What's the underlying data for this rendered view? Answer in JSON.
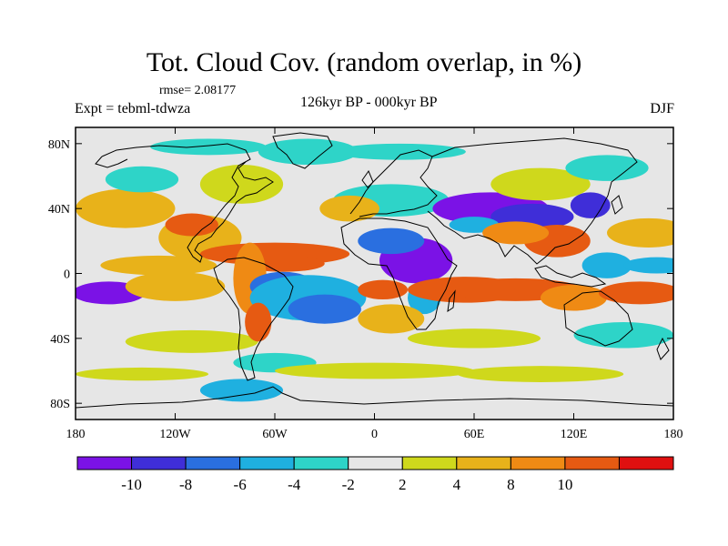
{
  "title": "Tot. Cloud Cov. (random overlap, in %)",
  "rmse": "rmse= 2.08177",
  "expt": "Expt = tebml-tdwza",
  "subtitle": "126kyr BP - 000kyr BP",
  "season": "DJF",
  "lat_ticks": [
    {
      "label": "80N",
      "lat": 80
    },
    {
      "label": "40N",
      "lat": 40
    },
    {
      "label": "0",
      "lat": 0
    },
    {
      "label": "40S",
      "lat": -40
    },
    {
      "label": "80S",
      "lat": -80
    }
  ],
  "lon_ticks": [
    {
      "label": "180",
      "lon": -180
    },
    {
      "label": "120W",
      "lon": -120
    },
    {
      "label": "60W",
      "lon": -60
    },
    {
      "label": "0",
      "lon": 0
    },
    {
      "label": "60E",
      "lon": 60
    },
    {
      "label": "120E",
      "lon": 120
    },
    {
      "label": "180",
      "lon": 180
    }
  ],
  "colorbar": {
    "colors": [
      "#7b12e6",
      "#3f2ed8",
      "#2a6fe0",
      "#1fb0e0",
      "#2ed4c8",
      "#e6e6e6",
      "#cfd81c",
      "#e8b21a",
      "#ef8a14",
      "#e65a12",
      "#e01010"
    ],
    "labels": [
      "-10",
      "-8",
      "-6",
      "-4",
      "-2",
      "2",
      "4",
      "8",
      "10"
    ]
  },
  "chart_data": {
    "type": "heatmap",
    "title": "Tot. Cloud Cov. (random overlap, in %)",
    "subtitle": "126kyr BP - 000kyr BP",
    "season": "DJF",
    "xlim": [
      -180,
      180
    ],
    "ylim": [
      -90,
      90
    ],
    "levels": [
      -10,
      -8,
      -6,
      -4,
      -2,
      2,
      4,
      8,
      10
    ],
    "colors": [
      "#7b12e6",
      "#3f2ed8",
      "#2a6fe0",
      "#1fb0e0",
      "#2ed4c8",
      "#e6e6e6",
      "#cfd81c",
      "#e8b21a",
      "#ef8a14",
      "#e65a12",
      "#e01010"
    ],
    "features": [
      {
        "lon": -160,
        "lat": -12,
        "rx": 22,
        "ry": 7,
        "v": -11
      },
      {
        "lon": -120,
        "lat": -8,
        "rx": 30,
        "ry": 9,
        "v": 5
      },
      {
        "lon": -130,
        "lat": 5,
        "rx": 35,
        "ry": 6,
        "v": 7
      },
      {
        "lon": -105,
        "lat": 22,
        "rx": 25,
        "ry": 14,
        "v": 5
      },
      {
        "lon": -110,
        "lat": 30,
        "rx": 16,
        "ry": 7,
        "v": 11
      },
      {
        "lon": -60,
        "lat": 12,
        "rx": 45,
        "ry": 7,
        "v": 11
      },
      {
        "lon": -55,
        "lat": 6,
        "rx": 25,
        "ry": 5,
        "v": 10
      },
      {
        "lon": -75,
        "lat": -3,
        "rx": 10,
        "ry": 22,
        "v": 8
      },
      {
        "lon": -55,
        "lat": -8,
        "rx": 20,
        "ry": 9,
        "v": -7
      },
      {
        "lon": -40,
        "lat": -15,
        "rx": 35,
        "ry": 14,
        "v": -5
      },
      {
        "lon": -30,
        "lat": -22,
        "rx": 22,
        "ry": 9,
        "v": -7
      },
      {
        "lon": -150,
        "lat": 40,
        "rx": 30,
        "ry": 12,
        "v": 5
      },
      {
        "lon": -140,
        "lat": 58,
        "rx": 22,
        "ry": 8,
        "v": -3
      },
      {
        "lon": -80,
        "lat": 55,
        "rx": 25,
        "ry": 12,
        "v": 3
      },
      {
        "lon": -40,
        "lat": 75,
        "rx": 30,
        "ry": 8,
        "v": -4
      },
      {
        "lon": -100,
        "lat": 78,
        "rx": 35,
        "ry": 5,
        "v": -3
      },
      {
        "lon": 15,
        "lat": 75,
        "rx": 40,
        "ry": 5,
        "v": -3
      },
      {
        "lon": 10,
        "lat": 45,
        "rx": 35,
        "ry": 10,
        "v": -3
      },
      {
        "lon": -15,
        "lat": 40,
        "rx": 18,
        "ry": 8,
        "v": 5
      },
      {
        "lon": 25,
        "lat": 8,
        "rx": 22,
        "ry": 14,
        "v": -11
      },
      {
        "lon": 10,
        "lat": 20,
        "rx": 20,
        "ry": 8,
        "v": -7
      },
      {
        "lon": 30,
        "lat": -15,
        "rx": 10,
        "ry": 10,
        "v": -6
      },
      {
        "lon": 5,
        "lat": -10,
        "rx": 15,
        "ry": 6,
        "v": 10
      },
      {
        "lon": 10,
        "lat": -28,
        "rx": 20,
        "ry": 9,
        "v": 7
      },
      {
        "lon": 55,
        "lat": -10,
        "rx": 35,
        "ry": 8,
        "v": 11
      },
      {
        "lon": 85,
        "lat": -10,
        "rx": 40,
        "ry": 7,
        "v": 11
      },
      {
        "lon": 120,
        "lat": -15,
        "rx": 20,
        "ry": 8,
        "v": 9
      },
      {
        "lon": 160,
        "lat": -12,
        "rx": 25,
        "ry": 7,
        "v": 10
      },
      {
        "lon": 70,
        "lat": 40,
        "rx": 35,
        "ry": 10,
        "v": -11
      },
      {
        "lon": 95,
        "lat": 35,
        "rx": 25,
        "ry": 8,
        "v": -9
      },
      {
        "lon": 60,
        "lat": 30,
        "rx": 15,
        "ry": 5,
        "v": -6
      },
      {
        "lon": 110,
        "lat": 20,
        "rx": 20,
        "ry": 10,
        "v": 10
      },
      {
        "lon": 85,
        "lat": 25,
        "rx": 20,
        "ry": 7,
        "v": 9
      },
      {
        "lon": 130,
        "lat": 42,
        "rx": 12,
        "ry": 8,
        "v": -10
      },
      {
        "lon": 165,
        "lat": 25,
        "rx": 25,
        "ry": 9,
        "v": 6
      },
      {
        "lon": 140,
        "lat": 5,
        "rx": 15,
        "ry": 8,
        "v": -5
      },
      {
        "lon": 170,
        "lat": 5,
        "rx": 20,
        "ry": 5,
        "v": -6
      },
      {
        "lon": 100,
        "lat": 55,
        "rx": 30,
        "ry": 10,
        "v": 3
      },
      {
        "lon": 140,
        "lat": 65,
        "rx": 25,
        "ry": 8,
        "v": -4
      },
      {
        "lon": 150,
        "lat": -38,
        "rx": 30,
        "ry": 8,
        "v": -4
      },
      {
        "lon": 60,
        "lat": -40,
        "rx": 40,
        "ry": 6,
        "v": 3
      },
      {
        "lon": -110,
        "lat": -42,
        "rx": 40,
        "ry": 7,
        "v": 3
      },
      {
        "lon": -70,
        "lat": -30,
        "rx": 8,
        "ry": 12,
        "v": 10
      },
      {
        "lon": -60,
        "lat": -55,
        "rx": 25,
        "ry": 6,
        "v": -3
      },
      {
        "lon": -80,
        "lat": -72,
        "rx": 25,
        "ry": 7,
        "v": -5
      },
      {
        "lon": 0,
        "lat": -60,
        "rx": 60,
        "ry": 5,
        "v": 3
      },
      {
        "lon": 100,
        "lat": -62,
        "rx": 50,
        "ry": 5,
        "v": 3
      },
      {
        "lon": -140,
        "lat": -62,
        "rx": 40,
        "ry": 4,
        "v": 3
      }
    ]
  }
}
